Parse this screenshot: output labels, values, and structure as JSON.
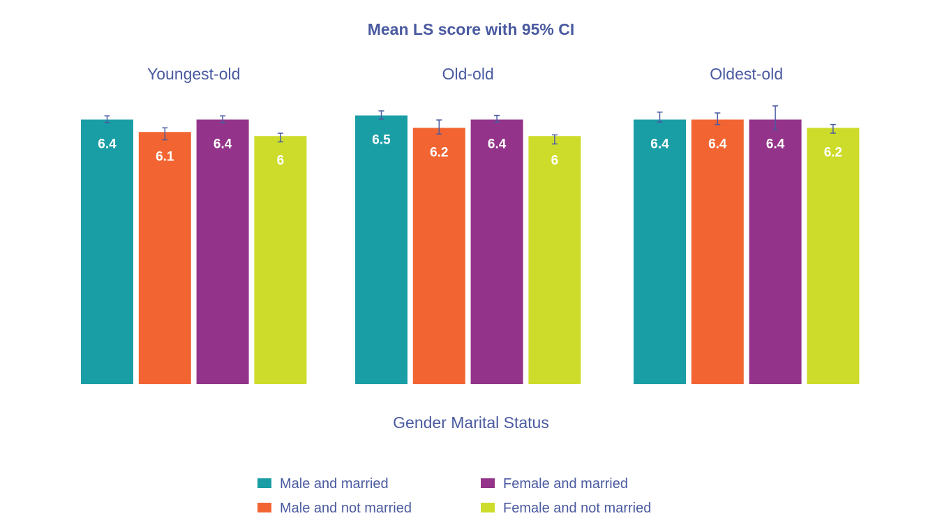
{
  "chart_data": {
    "type": "bar",
    "title": "Mean LS score with 95% CI",
    "xlabel": "Gender Marital Status",
    "ylabel": "",
    "ylim": [
      0,
      6.5
    ],
    "grid": false,
    "legend_placement": "bottom",
    "panels": [
      {
        "title": "Youngest-old",
        "series": [
          {
            "name": "Male and married",
            "value": 6.4,
            "label": "6.4",
            "ci": [
              6.33,
              6.49
            ]
          },
          {
            "name": "Male and not married",
            "value": 6.1,
            "label": "6.1",
            "ci": [
              5.91,
              6.2
            ]
          },
          {
            "name": "Female and married",
            "value": 6.4,
            "label": "6.4",
            "ci": [
              6.33,
              6.49
            ]
          },
          {
            "name": "Female and not married",
            "value": 6.0,
            "label": "6",
            "ci": [
              5.86,
              6.07
            ]
          }
        ]
      },
      {
        "title": "Old-old",
        "series": [
          {
            "name": "Male and married",
            "value": 6.5,
            "label": "6.5",
            "ci": [
              6.41,
              6.61
            ]
          },
          {
            "name": "Male and not married",
            "value": 6.2,
            "label": "6.2",
            "ci": [
              6.05,
              6.39
            ]
          },
          {
            "name": "Female and married",
            "value": 6.4,
            "label": "6.4",
            "ci": [
              6.34,
              6.5
            ]
          },
          {
            "name": "Female and not married",
            "value": 6.0,
            "label": "6",
            "ci": [
              5.81,
              6.03
            ]
          }
        ]
      },
      {
        "title": "Oldest-old",
        "series": [
          {
            "name": "Male and married",
            "value": 6.4,
            "label": "6.4",
            "ci": [
              6.34,
              6.58
            ]
          },
          {
            "name": "Male and not married",
            "value": 6.4,
            "label": "6.4",
            "ci": [
              6.28,
              6.56
            ]
          },
          {
            "name": "Female and married",
            "value": 6.4,
            "label": "6.4",
            "ci": [
              6.15,
              6.73
            ]
          },
          {
            "name": "Female and not married",
            "value": 6.2,
            "label": "6.2",
            "ci": [
              6.07,
              6.28
            ]
          }
        ]
      }
    ],
    "legend": [
      {
        "name": "Male and married",
        "color": "#1a9ea6"
      },
      {
        "name": "Male and not married",
        "color": "#f26532"
      },
      {
        "name": "Female and married",
        "color": "#93338a"
      },
      {
        "name": "Female and not married",
        "color": "#cddc2b"
      }
    ]
  },
  "colors": {
    "title": "#4a5aa0",
    "panel_title": "#4a5aa0",
    "axis_label": "#4a5aa0",
    "legend_text": "#4a5aa0",
    "error_bar": "#4a5aa0"
  }
}
